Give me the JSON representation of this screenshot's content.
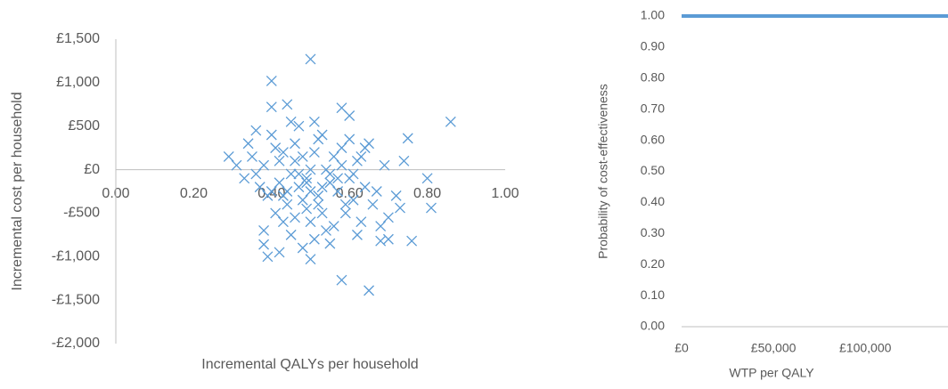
{
  "chart_data": [
    {
      "type": "scatter",
      "x_label": "Incremental QALYs per  household",
      "y_label": "Incremental cost per  household",
      "color": "#5b9bd5",
      "xlim": [
        0,
        1
      ],
      "ylim": [
        -2000,
        1500
      ],
      "xticks": [
        {
          "value": 0,
          "label": "0.00"
        },
        {
          "value": 0.2,
          "label": "0.20"
        },
        {
          "value": 0.4,
          "label": "0.40"
        },
        {
          "value": 0.6,
          "label": "0.60"
        },
        {
          "value": 0.8,
          "label": "0.80"
        },
        {
          "value": 1,
          "label": "1.00"
        }
      ],
      "yticks": [
        {
          "value": -2000,
          "label": "-£2,000"
        },
        {
          "value": -1500,
          "label": "-£1,500"
        },
        {
          "value": -1000,
          "label": "-£1,000"
        },
        {
          "value": -500,
          "label": "-£500"
        },
        {
          "value": 0,
          "label": "£0"
        },
        {
          "value": 500,
          "label": "£500"
        },
        {
          "value": 1000,
          "label": "£1,000"
        },
        {
          "value": 1500,
          "label": "£1,500"
        }
      ],
      "x": [
        0.5,
        0.4,
        0.4,
        0.44,
        0.58,
        0.6,
        0.86,
        0.75,
        0.8,
        0.81,
        0.76,
        0.58,
        0.65,
        0.39,
        0.38,
        0.5,
        0.29,
        0.7,
        0.73,
        0.68,
        0.42,
        0.45,
        0.47,
        0.5,
        0.52,
        0.55,
        0.38,
        0.41,
        0.44,
        0.48,
        0.53,
        0.57,
        0.6,
        0.62,
        0.36,
        0.39,
        0.43,
        0.46,
        0.49,
        0.51,
        0.54,
        0.58,
        0.61,
        0.64,
        0.34,
        0.37,
        0.4,
        0.42,
        0.45,
        0.47,
        0.5,
        0.52,
        0.55,
        0.59,
        0.63,
        0.66,
        0.69,
        0.72,
        0.33,
        0.35,
        0.41,
        0.43,
        0.46,
        0.48,
        0.51,
        0.53,
        0.56,
        0.58,
        0.62,
        0.65,
        0.67,
        0.7,
        0.44,
        0.47,
        0.49,
        0.52,
        0.54,
        0.57,
        0.4,
        0.38,
        0.36,
        0.42,
        0.45,
        0.48,
        0.5,
        0.55,
        0.6,
        0.63,
        0.68,
        0.74,
        0.31,
        0.46,
        0.51,
        0.56,
        0.59,
        0.61,
        0.64,
        0.43,
        0.49,
        0.53
      ],
      "values": [
        1270,
        1020,
        720,
        750,
        710,
        620,
        550,
        360,
        -100,
        -440,
        -820,
        -1270,
        -1390,
        -1000,
        -860,
        -1030,
        150,
        -800,
        -440,
        -820,
        100,
        -50,
        -200,
        0,
        -300,
        -150,
        50,
        250,
        -400,
        150,
        -500,
        -250,
        -100,
        100,
        -50,
        -300,
        -600,
        300,
        -450,
        200,
        -700,
        50,
        -350,
        -200,
        300,
        -200,
        400,
        -150,
        -750,
        500,
        -600,
        350,
        -50,
        -500,
        150,
        -400,
        50,
        -300,
        -100,
        150,
        -500,
        200,
        100,
        -350,
        -800,
        400,
        -650,
        250,
        -750,
        300,
        -250,
        -550,
        -250,
        -50,
        -150,
        -400,
        0,
        -100,
        -250,
        -700,
        450,
        -950,
        550,
        -900,
        -250,
        -850,
        350,
        -600,
        -650,
        100,
        50,
        -550,
        550,
        150,
        -400,
        -50,
        250,
        -300,
        -100,
        -200
      ]
    },
    {
      "type": "line",
      "x_label": "WTP per QALY",
      "y_label": "Probability of cost-effectiveness",
      "color": "#5b9bd5",
      "xlim": [
        0,
        145000
      ],
      "ylim": [
        0,
        1
      ],
      "xticks": [
        {
          "value": 0,
          "label": "£0"
        },
        {
          "value": 50000,
          "label": "£50,000"
        },
        {
          "value": 100000,
          "label": "£100,000"
        }
      ],
      "yticks": [
        {
          "value": 0,
          "label": "0.00"
        },
        {
          "value": 0.1,
          "label": "0.10"
        },
        {
          "value": 0.2,
          "label": "0.20"
        },
        {
          "value": 0.3,
          "label": "0.30"
        },
        {
          "value": 0.4,
          "label": "0.40"
        },
        {
          "value": 0.5,
          "label": "0.50"
        },
        {
          "value": 0.6,
          "label": "0.60"
        },
        {
          "value": 0.7,
          "label": "0.70"
        },
        {
          "value": 0.8,
          "label": "0.80"
        },
        {
          "value": 0.9,
          "label": "0.90"
        },
        {
          "value": 1,
          "label": "1.00"
        }
      ],
      "x": [
        0,
        50000,
        100000,
        145000
      ],
      "values": [
        1,
        1,
        1,
        1
      ]
    }
  ]
}
